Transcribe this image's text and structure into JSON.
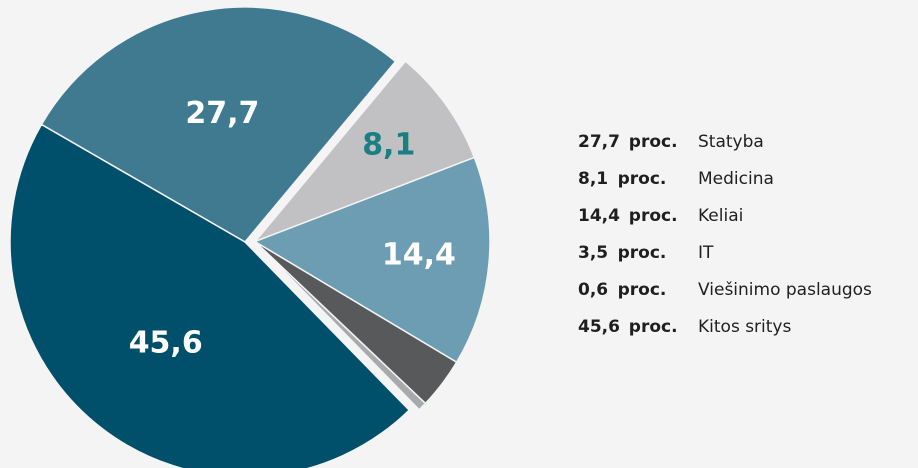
{
  "chart_data": {
    "type": "pie",
    "categories": [
      "Statyba",
      "Medicina",
      "Keliai",
      "IT",
      "Viešinimo paslaugos",
      "Kitos sritys"
    ],
    "values": [
      27.7,
      8.1,
      14.4,
      3.5,
      0.6,
      45.6
    ],
    "value_labels": [
      "27,7",
      "8,1",
      "14,4",
      "3,5",
      "0,6",
      "45,6"
    ],
    "unit": "proc.",
    "colors": [
      "#3f7a91",
      "#c1c1c3",
      "#6c9db3",
      "#58595b",
      "#a7a9ac",
      "#004f6b"
    ],
    "label_colors": [
      "#ffffff",
      "#1a7f82",
      "#ffffff",
      "#ffffff",
      "#ffffff",
      "#ffffff"
    ],
    "explode": [
      false,
      true,
      true,
      true,
      true,
      false
    ]
  }
}
